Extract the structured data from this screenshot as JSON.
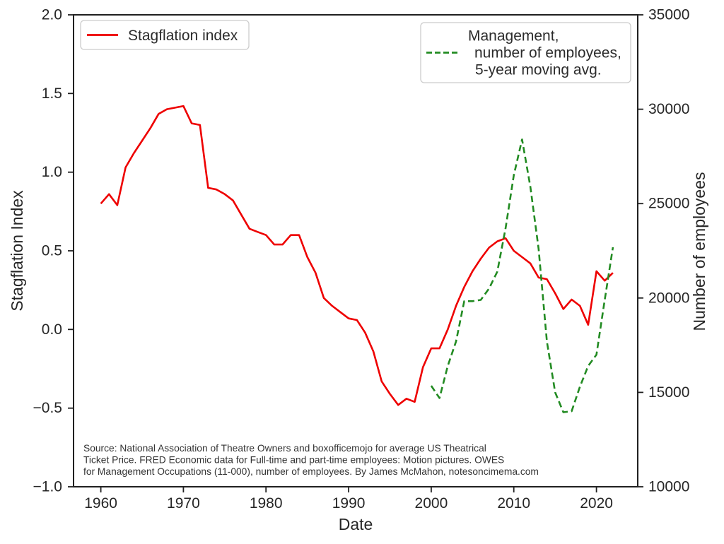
{
  "figure": {
    "source_lines": [
      "Source: National Association of Theatre Owners and boxofficemojo for average US Theatrical",
      "Ticket Price. FRED Economic data for Full-time and part-time employees: Motion pictures. OWES",
      "for Management Occupations (11-000), number of employees. By James McMahon, notesoncimema.com"
    ],
    "legend1": {
      "label": "Stagflation index"
    },
    "legend2": {
      "lines": [
        "Management,",
        "number of employees,",
        "5-year moving avg."
      ]
    },
    "colors": {
      "stagflation_red": "#ee0000",
      "employees_green": "#228b22",
      "text": "#262626",
      "spine": "#202020",
      "legend_border": "#cccccc"
    }
  },
  "chart_data": {
    "type": "line",
    "title": "",
    "xlabel": "Date",
    "grid": false,
    "xlim": [
      1956.7,
      2025.0
    ],
    "x_ticks": [
      1960,
      1970,
      1980,
      1990,
      2000,
      2010,
      2020
    ],
    "left_axis": {
      "label": "Stagflation Index",
      "lim": [
        -1.0,
        2.0
      ],
      "tick_values": [
        2.0,
        1.5,
        1.0,
        0.5,
        0.0,
        -0.5,
        -1.0
      ],
      "tick_labels": [
        "2.0",
        "1.5",
        "1.0",
        "0.5",
        "0.0",
        "−0.5",
        "−1.0"
      ]
    },
    "right_axis": {
      "label": "Number of employees",
      "lim": [
        10000,
        35000
      ],
      "tick_values": [
        35000,
        30000,
        25000,
        20000,
        15000,
        10000
      ],
      "tick_labels": [
        "35000",
        "30000",
        "25000",
        "20000",
        "15000",
        "10000"
      ]
    },
    "series": [
      {
        "name": "Stagflation index",
        "axis": "left",
        "color": "#ee0000",
        "style": "solid",
        "legend_position": "upper left",
        "start_year": 1960,
        "values": [
          0.8,
          0.86,
          0.79,
          1.03,
          1.12,
          1.2,
          1.28,
          1.37,
          1.4,
          1.41,
          1.42,
          1.31,
          1.3,
          0.9,
          0.89,
          0.86,
          0.82,
          0.73,
          0.64,
          0.62,
          0.6,
          0.54,
          0.54,
          0.6,
          0.6,
          0.46,
          0.36,
          0.2,
          0.15,
          0.11,
          0.07,
          0.06,
          -0.02,
          -0.14,
          -0.33,
          -0.41,
          -0.48,
          -0.44,
          -0.46,
          -0.24,
          -0.12,
          -0.12,
          0.0,
          0.15,
          0.27,
          0.37,
          0.45,
          0.52,
          0.56,
          0.58,
          0.5,
          0.46,
          0.42,
          0.33,
          0.32,
          0.23,
          0.13,
          0.19,
          0.15,
          0.03,
          0.37,
          0.31,
          0.36
        ]
      },
      {
        "name": "Management, number of employees, 5-year moving avg.",
        "axis": "right",
        "color": "#228b22",
        "style": "dashed",
        "legend_position": "upper right",
        "start_year": 2000,
        "values": [
          15350,
          14700,
          16400,
          17700,
          19830,
          19830,
          19900,
          20500,
          21400,
          23700,
          26500,
          28400,
          25900,
          22600,
          17700,
          15000,
          13950,
          14000,
          15300,
          16400,
          17000,
          19900,
          22690
        ]
      }
    ]
  }
}
